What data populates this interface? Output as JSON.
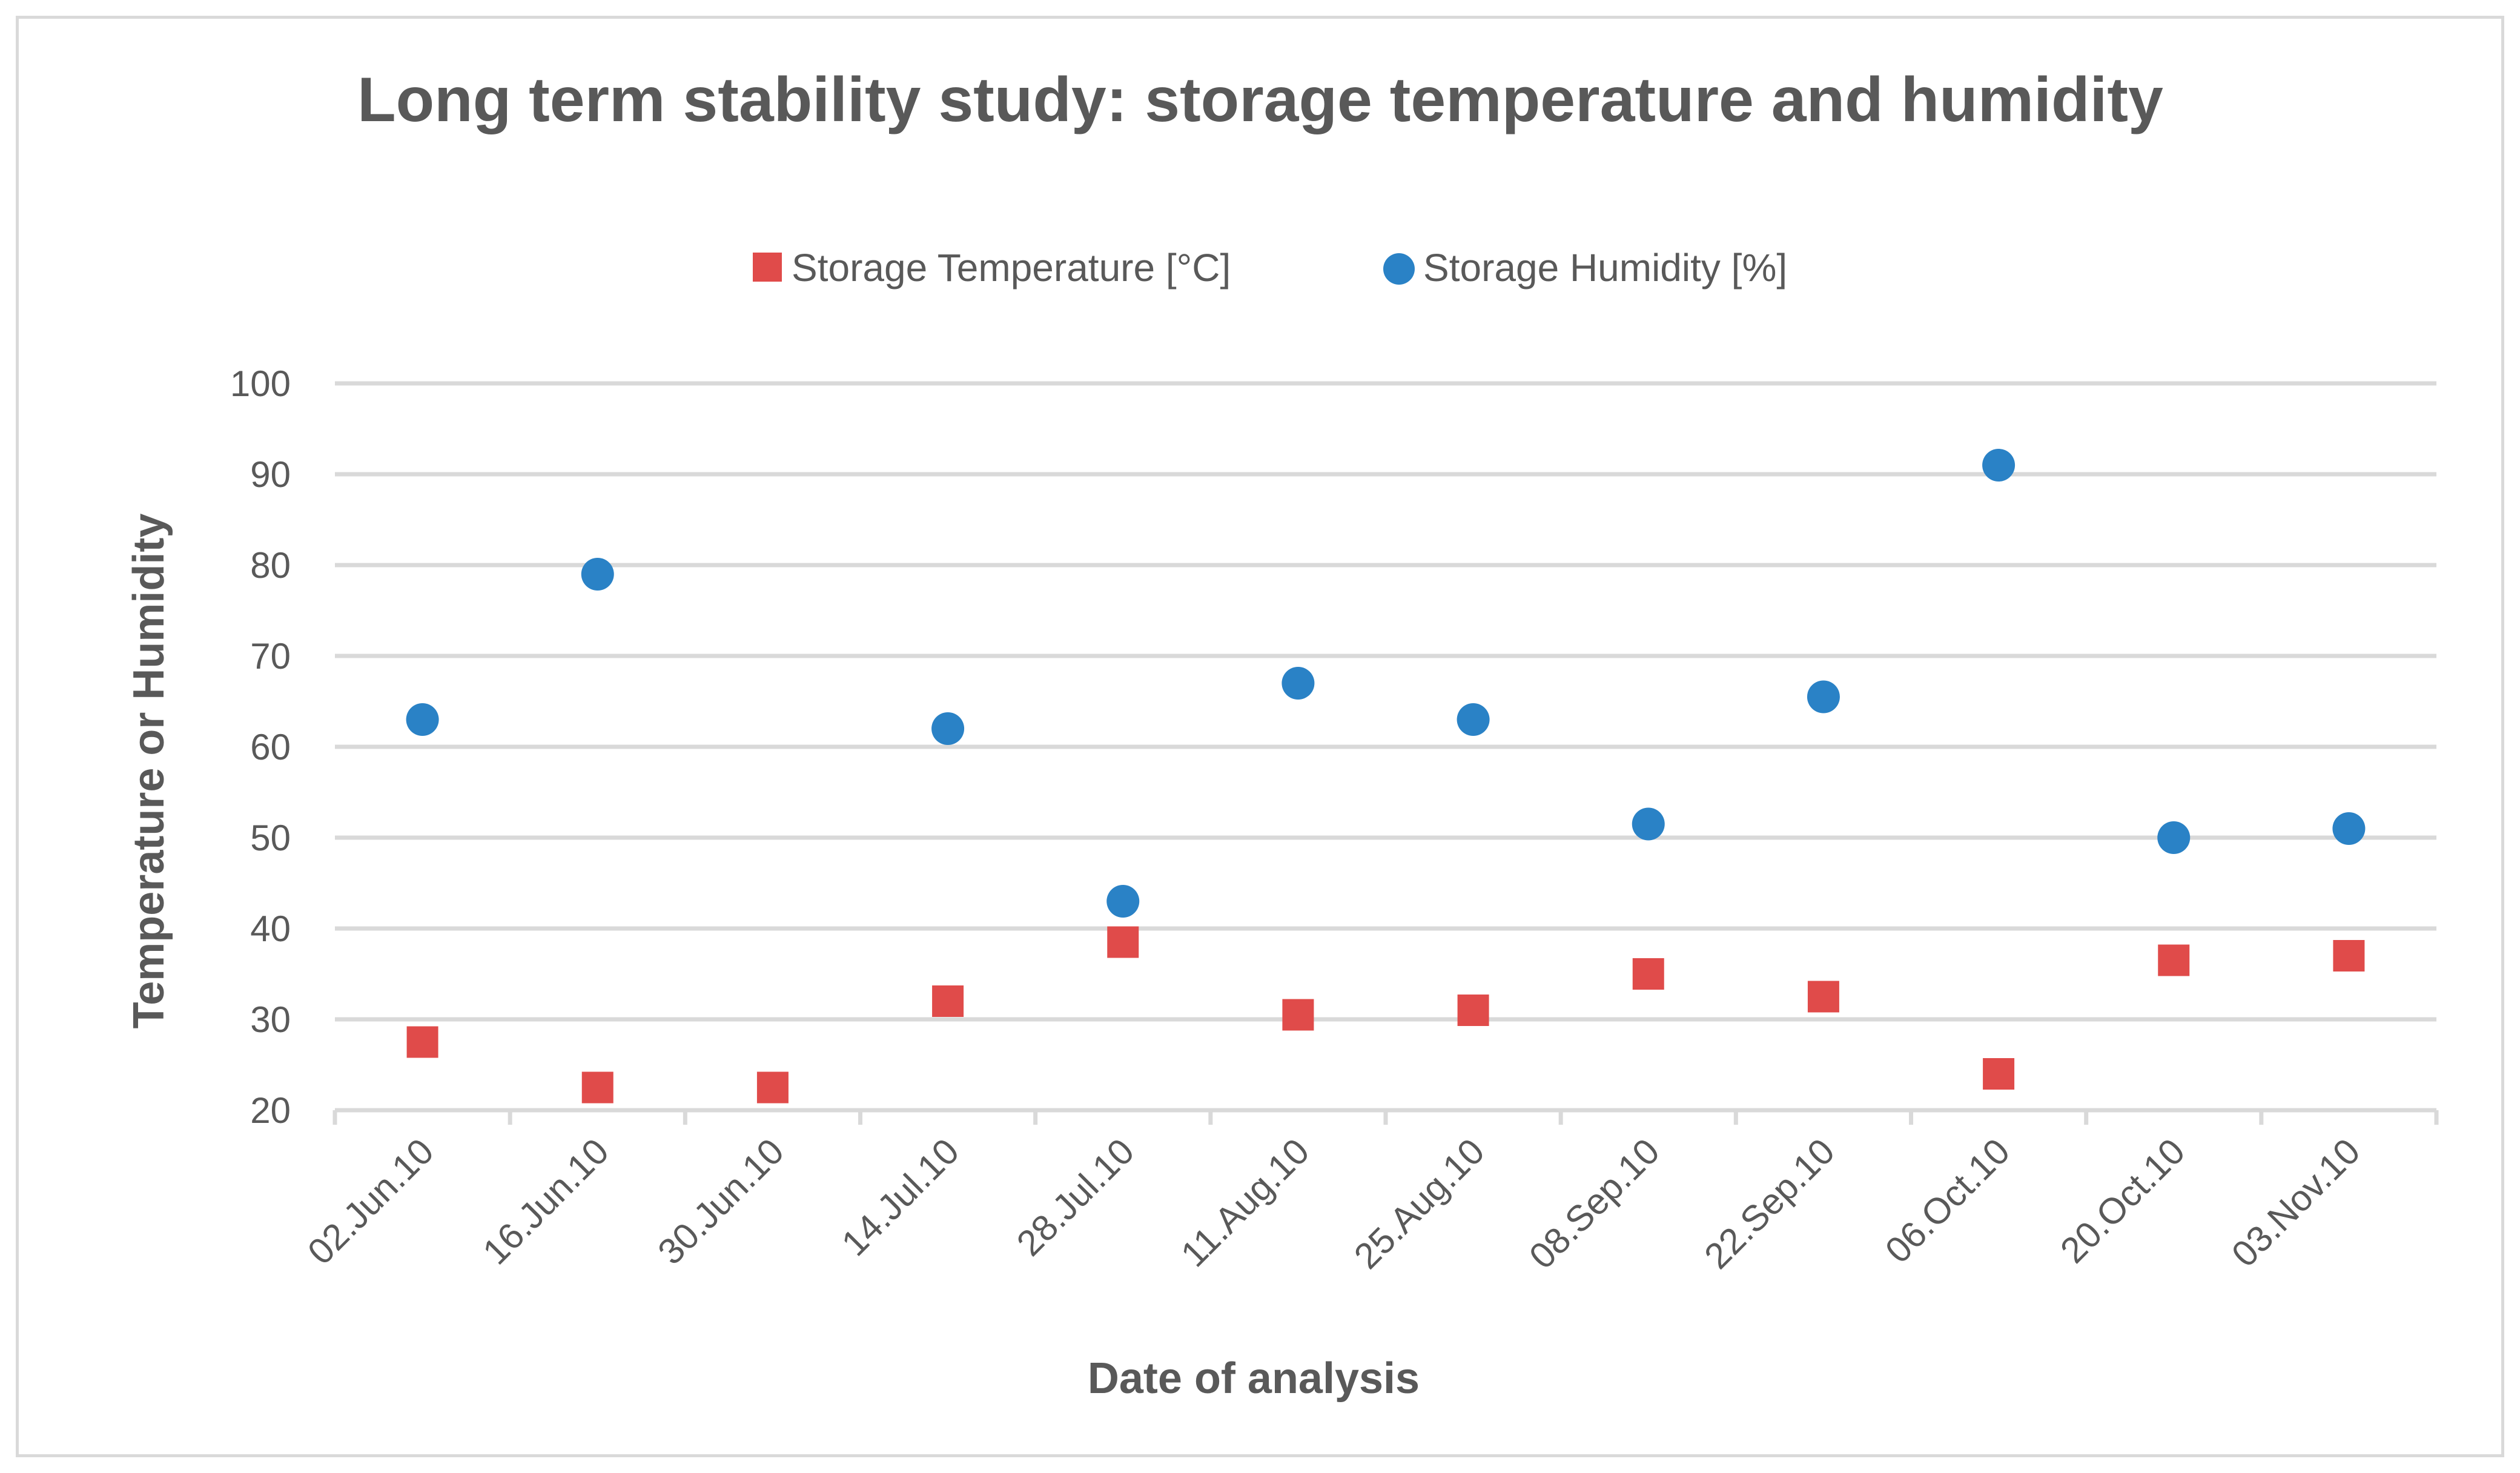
{
  "chart_data": {
    "type": "scatter",
    "title": "Long term stability study: storage temperature and humidity",
    "xlabel": "Date of analysis",
    "ylabel": "Temperature or Humidity",
    "ylim": [
      20,
      100
    ],
    "yticks": [
      "20",
      "30",
      "40",
      "50",
      "60",
      "70",
      "80",
      "90",
      "100"
    ],
    "xticks": [
      "02.Jun.10",
      "16.Jun.10",
      "30.Jun.10",
      "14.Jul.10",
      "28.Jul.10",
      "11.Aug.10",
      "25.Aug.10",
      "08.Sep.10",
      "22.Sep.10",
      "06.Oct.10",
      "20.Oct.10",
      "03.Nov.10"
    ],
    "x_day_range": [
      0,
      168
    ],
    "grid": true,
    "legend_position": "top",
    "series": [
      {
        "name": "Storage Temperature [°C]",
        "marker": "square",
        "color": "#e04b4a",
        "x_days": [
          7,
          21,
          35,
          49,
          63,
          77,
          91,
          105,
          119,
          133,
          147,
          161
        ],
        "values": [
          27.5,
          22.5,
          22.5,
          32,
          38.5,
          30.5,
          31,
          35,
          32.5,
          24,
          36.5,
          37
        ]
      },
      {
        "name": "Storage Humidity [%]",
        "marker": "circle",
        "color": "#2a82c6",
        "x_days": [
          7,
          21,
          49,
          63,
          77,
          91,
          105,
          119,
          133,
          147,
          161
        ],
        "values": [
          63,
          79,
          62,
          43,
          67,
          63,
          51.5,
          65.5,
          91,
          50,
          51
        ]
      }
    ]
  }
}
